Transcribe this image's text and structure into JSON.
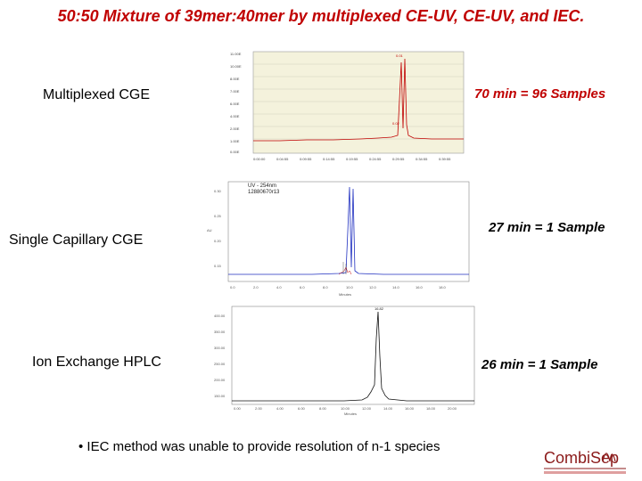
{
  "title": "50:50 Mixture of 39mer:40mer by multiplexed CE-UV, CE-UV, and IEC.",
  "rows": [
    {
      "method": "Multiplexed CGE",
      "throughput": "70 min = 96 Samples"
    },
    {
      "method": "Single Capillary CGE",
      "throughput": "27 min = 1 Sample"
    },
    {
      "method": "Ion Exchange HPLC",
      "throughput": "26 min = 1 Sample"
    }
  ],
  "bullet": "IEC method was unable to provide resolution of n-1 species",
  "logo": {
    "text": "CombiSep"
  },
  "colors": {
    "title": "#c00000",
    "trace_red": "#c00000",
    "trace_blue": "#2030c0",
    "plot_bg_1": "#f4f2dc"
  },
  "chart_data": [
    {
      "type": "line",
      "description_shown": "multiplexed CE-UV electropherogram",
      "legend": [],
      "x": [
        0,
        5,
        10,
        15,
        20,
        25,
        28,
        30,
        32,
        35,
        40
      ],
      "y": [
        0.2,
        0.25,
        0.3,
        0.35,
        0.4,
        0.6,
        14,
        0.8,
        0.5,
        0.35,
        0.3
      ]
    },
    {
      "type": "line",
      "legend": [
        "UV - 254nm",
        "12880670r13"
      ],
      "x": [
        0,
        5,
        10,
        15,
        17,
        18,
        20,
        25,
        30
      ],
      "y": [
        0,
        0,
        0,
        0.1,
        9.5,
        0.4,
        0.1,
        0,
        0
      ]
    },
    {
      "type": "line",
      "x": [
        0,
        5,
        10,
        15,
        16,
        17,
        18,
        20,
        25
      ],
      "y": [
        0,
        0,
        0,
        0.3,
        2,
        9,
        1,
        0.2,
        0
      ]
    }
  ]
}
